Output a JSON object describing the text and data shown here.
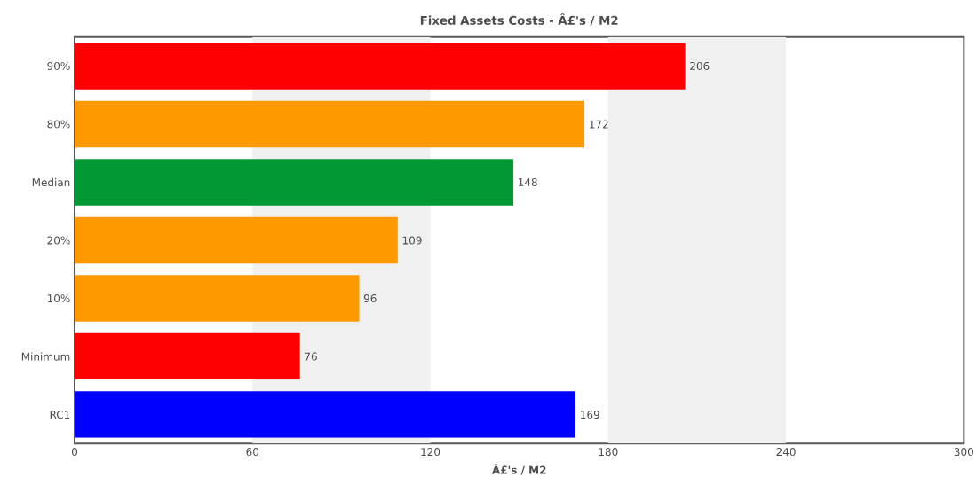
{
  "chart_data": {
    "type": "bar",
    "orientation": "horizontal",
    "title": "Fixed Assets Costs - Â£'s / M2",
    "xlabel": "Â£'s / M2",
    "categories": [
      "90%",
      "80%",
      "Median",
      "20%",
      "10%",
      "Minimum",
      "RC1"
    ],
    "values": [
      206,
      172,
      148,
      109,
      96,
      76,
      169
    ],
    "colors": [
      "#ff0000",
      "#ff9900",
      "#009933",
      "#ff9900",
      "#ff9900",
      "#ff0000",
      "#0000ff"
    ],
    "data_labels": true,
    "xlim": [
      0,
      300
    ],
    "xticks": [
      0,
      60,
      120,
      180,
      240,
      300
    ],
    "grid": false,
    "bands": [
      {
        "axis": "x",
        "from": 60,
        "to": 120,
        "color": "#f0f0f0"
      },
      {
        "axis": "x",
        "from": 180,
        "to": 240,
        "color": "#f0f0f0"
      }
    ]
  }
}
